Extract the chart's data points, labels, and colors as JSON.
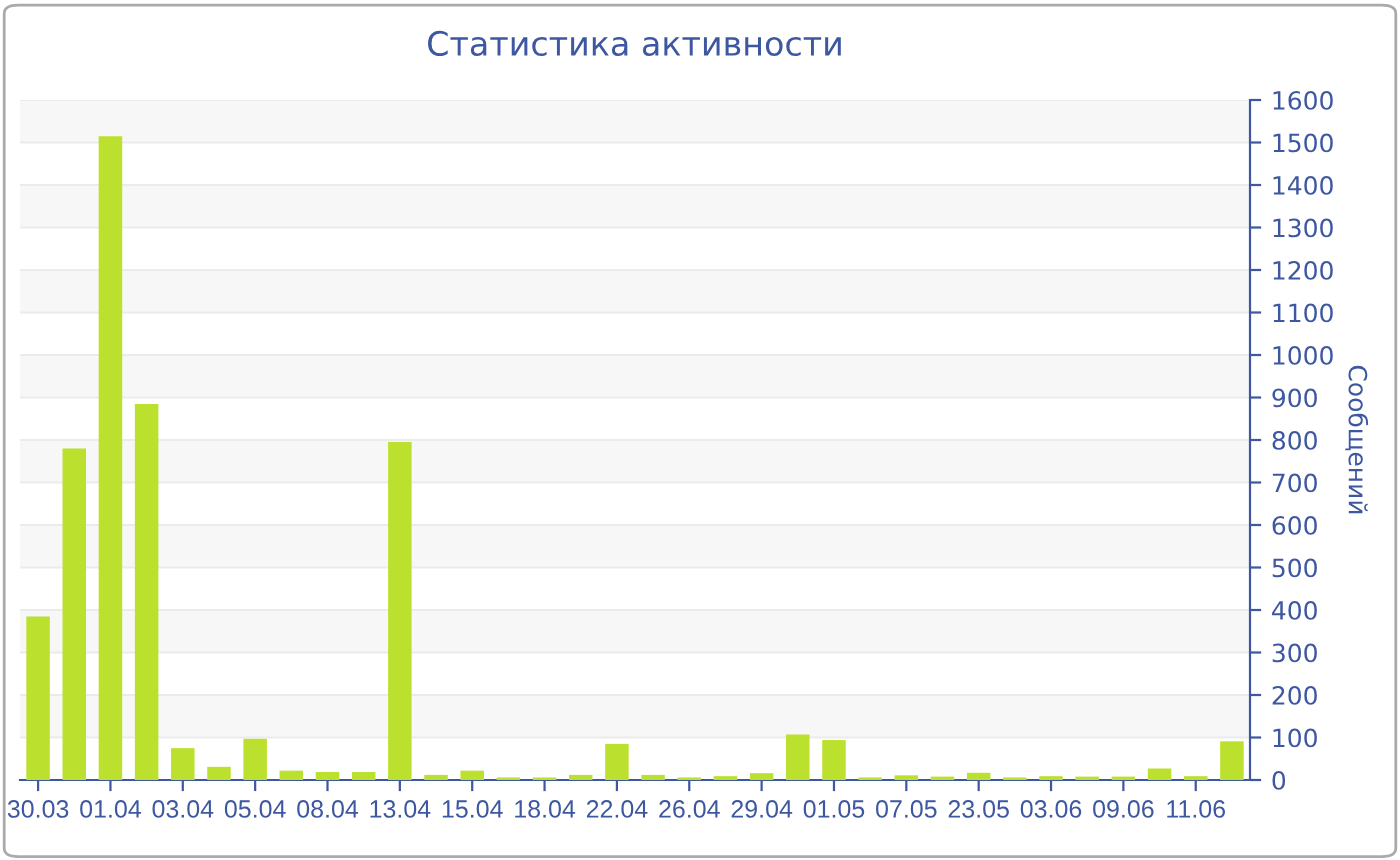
{
  "chart_data": {
    "type": "bar",
    "title": "Статистика активности",
    "ylabel": "Сообщений",
    "categories": [
      "30.03",
      null,
      "01.04",
      null,
      "03.04",
      null,
      "05.04",
      null,
      "08.04",
      null,
      "13.04",
      null,
      "15.04",
      null,
      "18.04",
      null,
      "22.04",
      null,
      "26.04",
      null,
      "29.04",
      null,
      "01.05",
      null,
      "07.05",
      null,
      "23.05",
      null,
      "03.06",
      null,
      "09.06",
      null,
      "11.06",
      null
    ],
    "values": [
      385,
      780,
      1515,
      885,
      75,
      31,
      97,
      22,
      19,
      19,
      795,
      12,
      22,
      6,
      6,
      12,
      85,
      12,
      6,
      9,
      16,
      107,
      94,
      6,
      11,
      8,
      17,
      6,
      9,
      8,
      8,
      27,
      9,
      91
    ],
    "color": "#bce02e",
    "ylim": [
      0,
      1600
    ],
    "yticks": [
      0,
      100,
      200,
      300,
      400,
      500,
      600,
      700,
      800,
      900,
      1000,
      1100,
      1200,
      1300,
      1400,
      1500,
      1600
    ],
    "grid": "y"
  }
}
